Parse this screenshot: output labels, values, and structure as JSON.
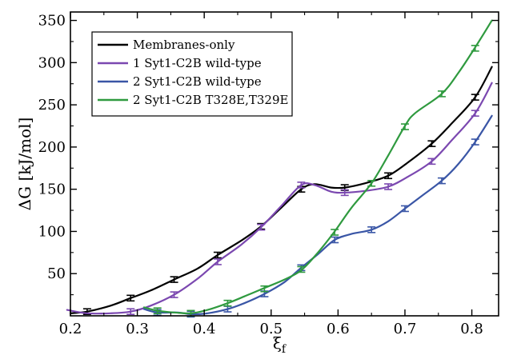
{
  "chart_data": {
    "type": "line",
    "xlabel": "ξ",
    "xlabel_sub": "f",
    "ylabel": "ΔG [kJ/mol]",
    "xlim": [
      0.2,
      0.84
    ],
    "ylim": [
      0,
      360
    ],
    "xticks": [
      0.2,
      0.3,
      0.4,
      0.5,
      0.6,
      0.7,
      0.8
    ],
    "xtick_labels": [
      "0.2",
      "0.3",
      "0.4",
      "0.5",
      "0.6",
      "0.7",
      "0.8"
    ],
    "yticks": [
      50,
      100,
      150,
      200,
      250,
      300,
      350
    ],
    "ytick_labels": [
      "50",
      "100",
      "150",
      "200",
      "250",
      "300",
      "350"
    ],
    "grid": false,
    "legend_position": "top-left",
    "series": [
      {
        "name": "Membranes-only",
        "color": "#000000",
        "x": [
          0.2,
          0.225,
          0.26,
          0.29,
          0.32,
          0.355,
          0.39,
          0.42,
          0.455,
          0.485,
          0.515,
          0.545,
          0.565,
          0.59,
          0.61,
          0.64,
          0.675,
          0.705,
          0.74,
          0.77,
          0.805,
          0.83
        ],
        "y": [
          3,
          5,
          12,
          21,
          30,
          43,
          56,
          72,
          89,
          106,
          128,
          150,
          156,
          152,
          152,
          157,
          166,
          182,
          204,
          228,
          259,
          295
        ],
        "error_x": [
          0.225,
          0.29,
          0.355,
          0.42,
          0.485,
          0.545,
          0.61,
          0.675,
          0.74,
          0.805
        ],
        "error_y": [
          5,
          21,
          43,
          72,
          106,
          150,
          152,
          166,
          204,
          259
        ]
      },
      {
        "name": "1 Syt1-C2B wild-type",
        "color": "#7b48b0",
        "x": [
          0.195,
          0.225,
          0.26,
          0.29,
          0.32,
          0.355,
          0.39,
          0.42,
          0.455,
          0.485,
          0.515,
          0.545,
          0.565,
          0.59,
          0.61,
          0.64,
          0.675,
          0.705,
          0.74,
          0.77,
          0.805,
          0.83
        ],
        "y": [
          7,
          3,
          3,
          5,
          12,
          25,
          44,
          64,
          84,
          105,
          130,
          155,
          155,
          147,
          146,
          148,
          153,
          165,
          183,
          208,
          240,
          276
        ],
        "error_x": [
          0.29,
          0.355,
          0.42,
          0.485,
          0.545,
          0.61,
          0.675,
          0.74,
          0.805
        ],
        "error_y": [
          5,
          25,
          64,
          105,
          155,
          146,
          153,
          183,
          240
        ]
      },
      {
        "name": "2 Syt1-C2B wild-type",
        "color": "#3a56a6",
        "x": [
          0.31,
          0.33,
          0.36,
          0.38,
          0.405,
          0.435,
          0.46,
          0.49,
          0.52,
          0.545,
          0.57,
          0.595,
          0.62,
          0.65,
          0.675,
          0.7,
          0.725,
          0.755,
          0.78,
          0.805,
          0.83
        ],
        "y": [
          8,
          4,
          4,
          2,
          3,
          8,
          15,
          26,
          40,
          57,
          73,
          90,
          97,
          102,
          112,
          127,
          142,
          160,
          180,
          206,
          237
        ],
        "error_x": [
          0.33,
          0.38,
          0.435,
          0.49,
          0.545,
          0.595,
          0.65,
          0.7,
          0.755,
          0.805
        ],
        "error_y": [
          4,
          2,
          8,
          26,
          57,
          90,
          102,
          127,
          160,
          206
        ]
      },
      {
        "name": "2 Syt1-C2B T328E,T329E",
        "color": "#2f9a3f",
        "x": [
          0.31,
          0.33,
          0.355,
          0.38,
          0.405,
          0.435,
          0.46,
          0.49,
          0.52,
          0.545,
          0.57,
          0.595,
          0.62,
          0.65,
          0.675,
          0.7,
          0.715,
          0.755,
          0.78,
          0.805,
          0.83
        ],
        "y": [
          10,
          6,
          4,
          3,
          7,
          15,
          23,
          33,
          43,
          54,
          75,
          100,
          128,
          157,
          190,
          225,
          240,
          263,
          288,
          318,
          350
        ],
        "error_x": [
          0.33,
          0.38,
          0.435,
          0.49,
          0.545,
          0.595,
          0.65,
          0.7,
          0.755,
          0.805
        ],
        "error_y": [
          6,
          3,
          15,
          32,
          55,
          99,
          157,
          224,
          263,
          317
        ]
      }
    ]
  }
}
